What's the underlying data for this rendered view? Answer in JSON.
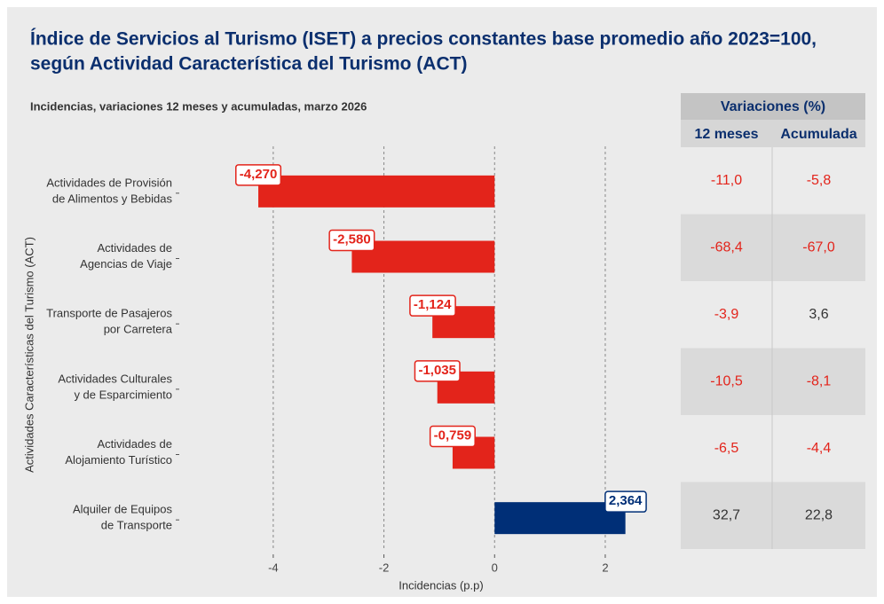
{
  "chart_data": {
    "type": "barh",
    "title": [
      "Índice de Servicios al Turismo (ISET) a precios constantes base promedio año 2023=100,",
      "según Actividad Característica del Turismo (ACT)"
    ],
    "subtitle": "Incidencias, variaciones 12 meses y acumuladas, marzo 2026",
    "y_label": "Actividades Características del Turismo (ACT)",
    "x_label": "Incidencias (p.p)",
    "categories": [
      [
        "Actividades de Provisión",
        "de Alimentos y Bebidas"
      ],
      [
        "Actividades de",
        "Agencias de Viaje"
      ],
      [
        "Transporte de Pasajeros",
        "por Carretera"
      ],
      [
        "Actividades Culturales",
        "y de Esparcimiento"
      ],
      [
        "Actividades de",
        "Alojamiento Turístico"
      ],
      [
        "Alquiler de Equipos",
        "de Transporte"
      ]
    ],
    "values": [
      -4.27,
      -2.58,
      -1.124,
      -1.035,
      -0.759,
      2.364
    ],
    "value_labels": [
      "-4,270",
      "-2,580",
      "-1,124",
      "-1,035",
      "-0,759",
      "2,364"
    ],
    "colors": [
      "#e3241b",
      "#e3241b",
      "#e3241b",
      "#e3241b",
      "#e3241b",
      "#002f77"
    ],
    "xlim": [
      -5.65,
      3.3
    ],
    "xticks": [
      -4,
      -2,
      0,
      2
    ],
    "grid": true,
    "table": {
      "title": "Variaciones (%)",
      "columns": [
        "12 meses",
        "Acumulada"
      ],
      "rows": [
        [
          "-11,0",
          "-5,8"
        ],
        [
          "-68,4",
          "-67,0"
        ],
        [
          "-3,9",
          "3,6"
        ],
        [
          "-10,5",
          "-8,1"
        ],
        [
          "-6,5",
          "-4,4"
        ],
        [
          "32,7",
          "22,8"
        ]
      ]
    }
  }
}
